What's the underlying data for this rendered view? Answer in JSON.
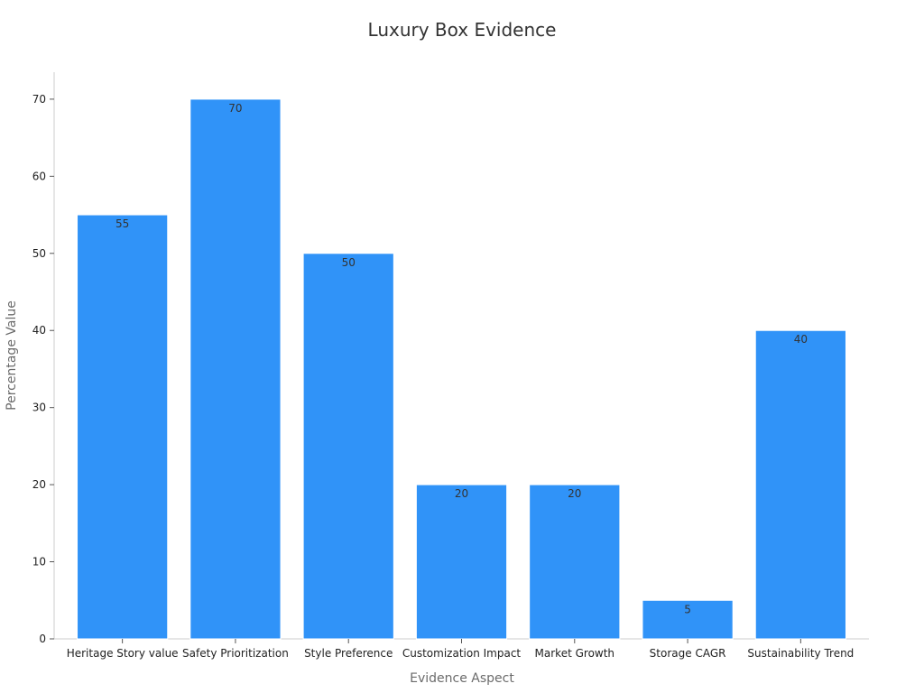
{
  "chart_data": {
    "type": "bar",
    "title": "Luxury Box Evidence",
    "xlabel": "Evidence Aspect",
    "ylabel": "Percentage Value",
    "categories": [
      "Heritage Story value",
      "Safety Prioritization",
      "Style Preference",
      "Customization Impact",
      "Market Growth",
      "Storage CAGR",
      "Sustainability Trend"
    ],
    "values": [
      55,
      70,
      50,
      20,
      20,
      5,
      40
    ],
    "ylim": [
      0,
      73.5
    ],
    "yticks": [
      0,
      10,
      20,
      30,
      40,
      50,
      60,
      70
    ],
    "grid": false,
    "legend": "none",
    "bar_color": "#3093f8",
    "data_labels": true
  }
}
